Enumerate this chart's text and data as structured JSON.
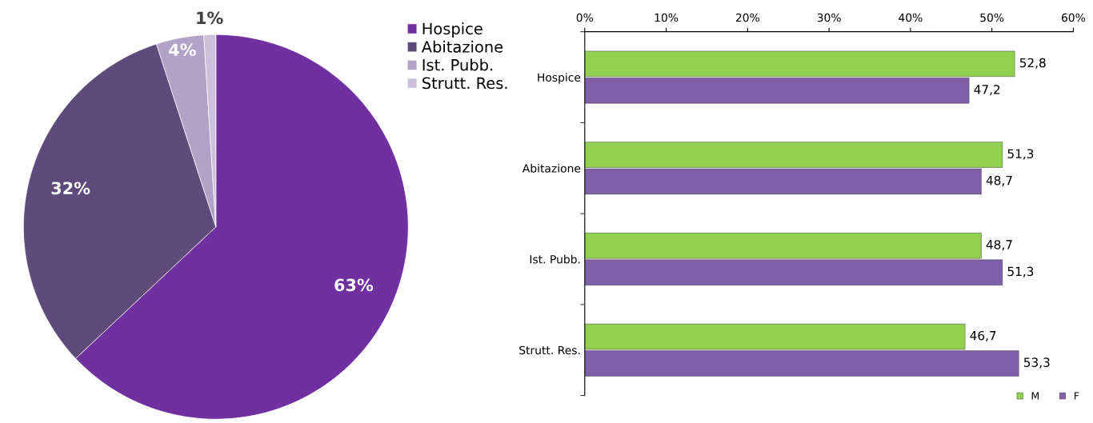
{
  "chart_data": [
    {
      "type": "pie",
      "categories": [
        "Hospice",
        "Abitazione",
        "Ist. Pubb.",
        "Strutt. Res."
      ],
      "values": [
        63,
        32,
        4,
        1
      ],
      "colors": [
        "#7030a0",
        "#5f4b7b",
        "#b3a2c7",
        "#ccc1da"
      ],
      "value_labels": [
        "63%",
        "32%",
        "4%",
        "1%"
      ],
      "legend": "top right"
    },
    {
      "type": "bar",
      "orientation": "horizontal",
      "categories": [
        "Hospice",
        "Abitazione",
        "Ist. Pubb.",
        "Strutt. Res."
      ],
      "series": [
        {
          "name": "M",
          "color": "#92d050",
          "values": [
            52.8,
            51.3,
            48.7,
            46.7
          ],
          "value_labels": [
            "52,8",
            "51,3",
            "48,7",
            "46,7"
          ]
        },
        {
          "name": "F",
          "color": "#7f5fa8",
          "values": [
            47.2,
            48.7,
            51.3,
            53.3
          ],
          "value_labels": [
            "47,2",
            "48,7",
            "51,3",
            "53,3"
          ]
        }
      ],
      "xlim": [
        0,
        60
      ],
      "xticks": [
        {
          "value": 0,
          "label": "0%"
        },
        {
          "value": 10,
          "label": "10%"
        },
        {
          "value": 20,
          "label": "20%"
        },
        {
          "value": 30,
          "label": "30%"
        },
        {
          "value": 40,
          "label": "40%"
        },
        {
          "value": 50,
          "label": "50%"
        },
        {
          "value": 60,
          "label": "60%"
        }
      ],
      "legend": "bottom right",
      "grid": false
    }
  ]
}
